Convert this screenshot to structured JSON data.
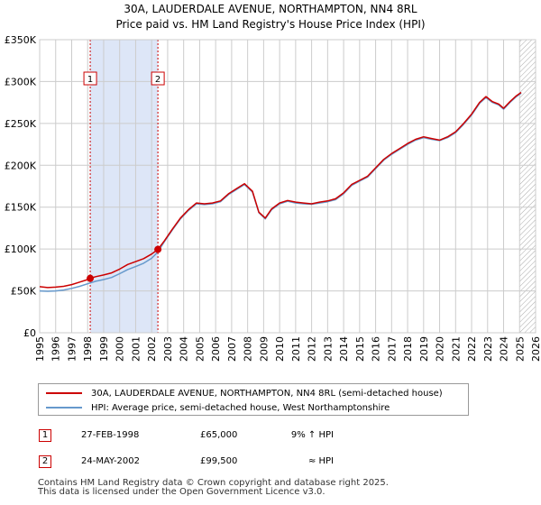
{
  "title": {
    "line1": "30A, LAUDERDALE AVENUE, NORTHAMPTON, NN4 8RL",
    "line2": "Price paid vs. HM Land Registry's House Price Index (HPI)"
  },
  "chart_data": {
    "type": "line",
    "title": "30A, LAUDERDALE AVENUE, NORTHAMPTON, NN4 8RL",
    "subtitle": "Price paid vs. HM Land Registry's House Price Index (HPI)",
    "xlim": [
      1995,
      2026
    ],
    "ylim": [
      0,
      350000
    ],
    "x_ticks": [
      1995,
      1996,
      1997,
      1998,
      1999,
      2000,
      2001,
      2002,
      2003,
      2004,
      2005,
      2006,
      2007,
      2008,
      2009,
      2010,
      2011,
      2012,
      2013,
      2014,
      2015,
      2016,
      2017,
      2018,
      2019,
      2020,
      2021,
      2022,
      2023,
      2024,
      2025,
      2026
    ],
    "y_ticks": [
      0,
      50000,
      100000,
      150000,
      200000,
      250000,
      300000,
      350000
    ],
    "y_tick_labels": [
      "£0",
      "£50K",
      "£100K",
      "£150K",
      "£200K",
      "£250K",
      "£300K",
      "£350K"
    ],
    "grid": true,
    "colors": {
      "property": "#cc0000",
      "hpi": "#6699cc",
      "shade": "#dde6f7",
      "hatch": "#aaaaaa"
    },
    "shaded_period": [
      1998.16,
      2002.39
    ],
    "forecast_start": 2025.0,
    "series": [
      {
        "name": "30A, LAUDERDALE AVENUE, NORTHAMPTON, NN4 8RL (semi-detached house)",
        "color": "#cc0000",
        "x": [
          1995.0,
          1995.5,
          1996.0,
          1996.5,
          1997.0,
          1997.5,
          1998.0,
          1998.16,
          1998.5,
          1999.0,
          1999.5,
          2000.0,
          2000.5,
          2001.0,
          2001.5,
          2002.0,
          2002.39,
          2002.8,
          2003.3,
          2003.8,
          2004.3,
          2004.8,
          2005.3,
          2005.8,
          2006.3,
          2006.8,
          2007.3,
          2007.8,
          2008.3,
          2008.7,
          2009.1,
          2009.5,
          2010.0,
          2010.5,
          2011.0,
          2011.5,
          2012.0,
          2012.5,
          2013.0,
          2013.5,
          2014.0,
          2014.5,
          2015.0,
          2015.5,
          2016.0,
          2016.5,
          2017.0,
          2017.5,
          2018.0,
          2018.5,
          2019.0,
          2019.5,
          2020.0,
          2020.5,
          2021.0,
          2021.5,
          2022.0,
          2022.5,
          2022.9,
          2023.3,
          2023.7,
          2024.0,
          2024.4,
          2024.8,
          2025.1
        ],
        "values": [
          55000,
          54000,
          54500,
          55500,
          57500,
          60500,
          63500,
          65000,
          67000,
          69000,
          71500,
          76000,
          81500,
          85000,
          88500,
          94000,
          99500,
          110000,
          124000,
          137000,
          147000,
          155000,
          154000,
          155000,
          157500,
          166000,
          172000,
          178000,
          169000,
          144000,
          137000,
          148000,
          155000,
          158000,
          156000,
          155000,
          154000,
          156000,
          157500,
          160000,
          167000,
          177000,
          182000,
          187000,
          197000,
          207000,
          214000,
          220000,
          226000,
          231000,
          234000,
          232000,
          230000,
          234000,
          240000,
          250000,
          261000,
          275000,
          282000,
          276000,
          273000,
          268000,
          276000,
          283000,
          287000
        ]
      },
      {
        "name": "HPI: Average price, semi-detached house, West Northamptonshire",
        "color": "#6699cc",
        "x": [
          1995.0,
          1995.5,
          1996.0,
          1996.5,
          1997.0,
          1997.5,
          1998.0,
          1998.5,
          1999.0,
          1999.5,
          2000.0,
          2000.5,
          2001.0,
          2001.5,
          2002.0,
          2002.39,
          2002.8,
          2003.3,
          2003.8,
          2004.3,
          2004.8,
          2005.3,
          2005.8,
          2006.3,
          2006.8,
          2007.3,
          2007.8,
          2008.3,
          2008.7,
          2009.1,
          2009.5,
          2010.0,
          2010.5,
          2011.0,
          2011.5,
          2012.0,
          2012.5,
          2013.0,
          2013.5,
          2014.0,
          2014.5,
          2015.0,
          2015.5,
          2016.0,
          2016.5,
          2017.0,
          2017.5,
          2018.0,
          2018.5,
          2019.0,
          2019.5,
          2020.0,
          2020.5,
          2021.0,
          2021.5,
          2022.0,
          2022.5,
          2022.9,
          2023.3,
          2023.7,
          2024.0,
          2024.4,
          2024.8,
          2025.1
        ],
        "values": [
          50000,
          49500,
          50000,
          51000,
          53000,
          55500,
          58500,
          61500,
          63500,
          66000,
          70500,
          75500,
          79000,
          83000,
          89000,
          96500,
          109000,
          123000,
          136000,
          146000,
          154000,
          153000,
          154000,
          156500,
          165000,
          171000,
          177000,
          168000,
          143500,
          136000,
          147000,
          154000,
          157000,
          155000,
          154000,
          153500,
          155000,
          156500,
          159000,
          166000,
          176000,
          181000,
          186000,
          196000,
          206000,
          213000,
          219000,
          225000,
          230000,
          233000,
          231000,
          229500,
          233000,
          239000,
          249000,
          260000,
          274000,
          281000,
          275000,
          272000,
          267000,
          275000,
          282000,
          286000
        ]
      }
    ],
    "sales": [
      {
        "label": "1",
        "x": 1998.16,
        "value": 65000
      },
      {
        "label": "2",
        "x": 2002.39,
        "value": 99500
      }
    ]
  },
  "legend": {
    "property_label": "30A, LAUDERDALE AVENUE, NORTHAMPTON, NN4 8RL (semi-detached house)",
    "hpi_label": "HPI: Average price, semi-detached house, West Northamptonshire"
  },
  "sales_table": [
    {
      "num": "1",
      "date": "27-FEB-1998",
      "price": "£65,000",
      "hpi": "9% ↑ HPI"
    },
    {
      "num": "2",
      "date": "24-MAY-2002",
      "price": "£99,500",
      "hpi": "≈ HPI"
    }
  ],
  "footer": {
    "line1": "Contains HM Land Registry data © Crown copyright and database right 2025.",
    "line2": "This data is licensed under the Open Government Licence v3.0."
  }
}
